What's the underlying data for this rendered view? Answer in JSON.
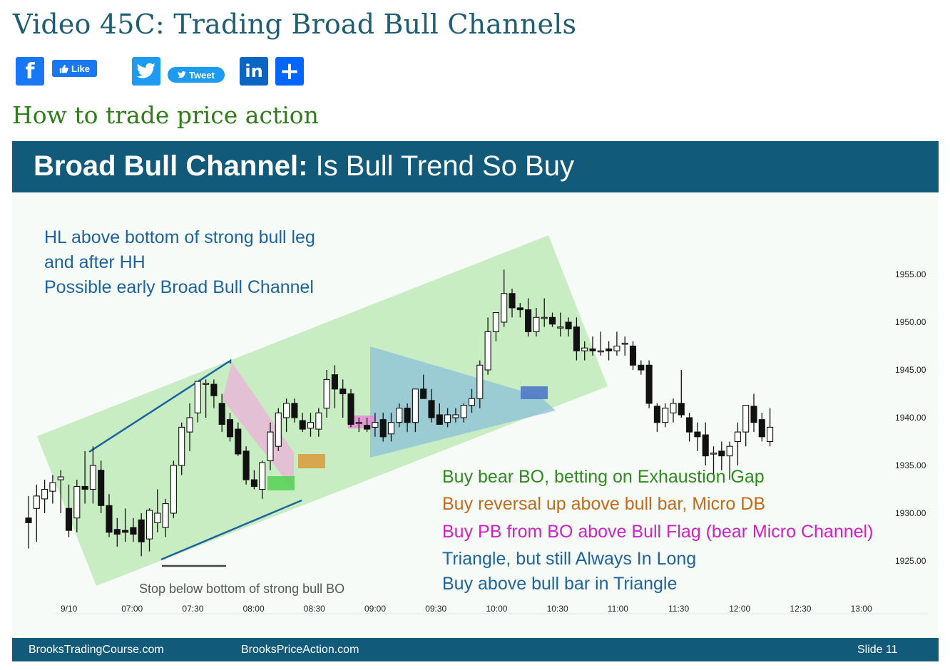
{
  "page": {
    "title": "Video 45C: Trading Broad Bull Channels",
    "subtitle": "How to trade price action"
  },
  "share": {
    "facebook_icon": "f",
    "like_label": "Like",
    "twitter_icon": "twitter-bird",
    "tweet_label": "Tweet",
    "linkedin_icon": "in",
    "more_icon": "+"
  },
  "slide": {
    "header_bold": "Broad Bull Channel:",
    "header_rest": "Is Bull Trend So Buy",
    "footer_left": "BrooksTradingCourse.com",
    "footer_mid": "BrooksPriceAction.com",
    "footer_right": "Slide  11"
  },
  "annotations": {
    "top_left": [
      "HL above bottom of strong bull leg",
      "and after HH",
      "Possible early Broad Bull Channel"
    ],
    "stop_note": "Stop below bottom of strong bull BO",
    "legend": [
      {
        "text": "Buy bear BO, betting on Exhaustion Gap",
        "color": "#2e8a1e"
      },
      {
        "text": "Buy reversal up above bull bar, Micro DB",
        "color": "#c06a1a"
      },
      {
        "text": "Buy PB from BO above Bull Flag (bear Micro Channel)",
        "color": "#d21fc8"
      },
      {
        "text": "Triangle, but still Always In Long",
        "color": "#1d63a0"
      },
      {
        "text": "Buy above bull bar in Triangle",
        "color": "#1d63a0"
      }
    ]
  },
  "colors": {
    "header_bg": "#125a7a",
    "channel_fill": "#b9e8b0",
    "trendline": "#1d63a0",
    "pink_zone": "#e7b7d6",
    "triangle_fill": "#8bbfd8"
  },
  "chart_data": {
    "type": "candlestick",
    "x_ticks": [
      "9/10",
      "07:00",
      "07:30",
      "08:00",
      "08:30",
      "09:00",
      "09:30",
      "10:00",
      "10:30",
      "11:00",
      "11:30",
      "12:00",
      "12:30",
      "13:00"
    ],
    "y_ticks": [
      1955,
      1950,
      1945,
      1940,
      1935,
      1930,
      1925
    ],
    "y_tick_labels": [
      "1955.00",
      "1950.00",
      "1945.00",
      "1940.00",
      "1935.00",
      "1930.00",
      "1925.00"
    ],
    "ylim": [
      1921.5,
      1958.5
    ],
    "bars": [
      [
        1929.5,
        1931.8,
        1926.3,
        1929.0
      ],
      [
        1930.5,
        1933.0,
        1927.0,
        1931.8
      ],
      [
        1931.5,
        1933.5,
        1930.0,
        1932.5
      ],
      [
        1932.3,
        1934.0,
        1931.0,
        1933.2
      ],
      [
        1933.5,
        1934.5,
        1930.0,
        1933.8
      ],
      [
        1930.5,
        1933.0,
        1927.5,
        1928.2
      ],
      [
        1929.5,
        1933.5,
        1928.0,
        1932.8
      ],
      [
        1932.8,
        1936.5,
        1931.0,
        1932.5
      ],
      [
        1932.5,
        1937.0,
        1931.0,
        1935.0
      ],
      [
        1934.5,
        1935.5,
        1930.0,
        1930.8
      ],
      [
        1930.8,
        1932.0,
        1927.5,
        1928.0
      ],
      [
        1928.3,
        1929.5,
        1926.5,
        1927.8
      ],
      [
        1928.2,
        1930.5,
        1927.0,
        1928.0
      ],
      [
        1928.5,
        1929.5,
        1927.0,
        1927.8
      ],
      [
        1929.3,
        1930.0,
        1925.5,
        1927.0
      ],
      [
        1927.3,
        1930.5,
        1926.0,
        1930.3
      ],
      [
        1929.0,
        1932.5,
        1928.0,
        1930.0
      ],
      [
        1928.5,
        1931.5,
        1927.5,
        1931.0
      ],
      [
        1930.0,
        1935.5,
        1929.5,
        1935.0
      ],
      [
        1935.0,
        1939.5,
        1934.0,
        1939.0
      ],
      [
        1938.5,
        1941.5,
        1936.5,
        1940.0
      ],
      [
        1940.5,
        1943.0,
        1939.5,
        1943.8
      ],
      [
        1943.5,
        1944.0,
        1940.0,
        1943.6
      ],
      [
        1943.5,
        1944.0,
        1941.0,
        1942.3
      ],
      [
        1941.5,
        1942.5,
        1938.5,
        1939.3
      ],
      [
        1939.8,
        1940.5,
        1937.5,
        1938.0
      ],
      [
        1938.8,
        1939.5,
        1936.0,
        1936.2
      ],
      [
        1936.5,
        1937.0,
        1933.0,
        1933.5
      ],
      [
        1933.5,
        1934.5,
        1932.5,
        1932.8
      ],
      [
        1932.5,
        1935.5,
        1931.5,
        1935.3
      ],
      [
        1935.5,
        1939.5,
        1934.5,
        1938.5
      ],
      [
        1937.0,
        1941.0,
        1936.5,
        1940.5
      ],
      [
        1940.0,
        1942.0,
        1938.5,
        1941.5
      ],
      [
        1941.5,
        1942.0,
        1939.5,
        1940.0
      ],
      [
        1939.7,
        1940.5,
        1938.5,
        1938.8
      ],
      [
        1938.9,
        1940.5,
        1938.0,
        1939.5
      ],
      [
        1938.8,
        1941.0,
        1938.0,
        1940.5
      ],
      [
        1941.0,
        1945.0,
        1940.0,
        1944.0
      ],
      [
        1944.5,
        1945.5,
        1941.0,
        1943.0
      ],
      [
        1943.0,
        1944.0,
        1940.0,
        1942.5
      ],
      [
        1942.5,
        1943.0,
        1939.0,
        1939.3
      ],
      [
        1939.5,
        1940.0,
        1938.5,
        1939.5
      ],
      [
        1939.2,
        1940.0,
        1938.5,
        1938.8
      ],
      [
        1939.0,
        1940.5,
        1938.0,
        1939.5
      ],
      [
        1939.8,
        1940.5,
        1937.5,
        1938.0
      ],
      [
        1938.3,
        1940.5,
        1937.5,
        1939.5
      ],
      [
        1939.5,
        1941.5,
        1939.0,
        1941.0
      ],
      [
        1941.0,
        1941.5,
        1938.5,
        1939.5
      ],
      [
        1939.5,
        1942.5,
        1938.5,
        1943.0
      ],
      [
        1943.0,
        1944.5,
        1942.0,
        1942.0
      ],
      [
        1941.8,
        1943.0,
        1939.5,
        1940.0
      ],
      [
        1940.3,
        1941.5,
        1939.5,
        1939.3
      ],
      [
        1939.5,
        1941.0,
        1939.0,
        1940.3
      ],
      [
        1940.0,
        1941.0,
        1939.5,
        1940.3
      ],
      [
        1940.0,
        1941.5,
        1939.5,
        1941.3
      ],
      [
        1941.3,
        1943.0,
        1940.5,
        1942.0
      ],
      [
        1942.0,
        1946.0,
        1941.0,
        1945.5
      ],
      [
        1945.0,
        1950.5,
        1944.5,
        1949.0
      ],
      [
        1949.0,
        1951.0,
        1948.0,
        1951.0
      ],
      [
        1950.0,
        1955.5,
        1949.5,
        1953.0
      ],
      [
        1953.0,
        1953.5,
        1950.5,
        1951.5
      ],
      [
        1951.5,
        1952.0,
        1950.5,
        1951.3
      ],
      [
        1951.3,
        1952.5,
        1948.5,
        1949.0
      ],
      [
        1949.0,
        1951.5,
        1948.5,
        1950.5
      ],
      [
        1950.5,
        1952.5,
        1949.5,
        1950.5
      ],
      [
        1950.5,
        1951.0,
        1949.5,
        1949.8
      ],
      [
        1949.5,
        1951.0,
        1948.5,
        1949.5
      ],
      [
        1950.0,
        1950.5,
        1948.5,
        1949.3
      ],
      [
        1949.5,
        1950.5,
        1946.0,
        1947.0
      ],
      [
        1947.0,
        1948.0,
        1946.0,
        1947.3
      ],
      [
        1947.2,
        1948.5,
        1946.5,
        1947.0
      ],
      [
        1947.0,
        1949.0,
        1946.5,
        1947.0
      ],
      [
        1947.2,
        1948.0,
        1946.0,
        1947.0
      ],
      [
        1947.0,
        1949.0,
        1946.5,
        1947.5
      ],
      [
        1947.7,
        1948.5,
        1946.5,
        1947.8
      ],
      [
        1947.5,
        1948.0,
        1945.0,
        1945.5
      ],
      [
        1945.5,
        1946.0,
        1944.5,
        1945.0
      ],
      [
        1945.5,
        1946.0,
        1941.0,
        1941.5
      ],
      [
        1941.2,
        1941.5,
        1938.5,
        1939.5
      ],
      [
        1939.5,
        1941.5,
        1939.0,
        1941.0
      ],
      [
        1940.5,
        1942.0,
        1939.5,
        1941.5
      ],
      [
        1941.5,
        1945.0,
        1940.0,
        1940.3
      ],
      [
        1940.0,
        1940.5,
        1937.5,
        1938.5
      ],
      [
        1938.5,
        1939.5,
        1936.5,
        1938.0
      ],
      [
        1938.2,
        1939.5,
        1935.0,
        1936.0
      ],
      [
        1936.3,
        1937.0,
        1934.0,
        1936.3
      ],
      [
        1936.5,
        1937.5,
        1934.5,
        1936.0
      ],
      [
        1936.0,
        1937.5,
        1933.5,
        1937.0
      ],
      [
        1937.5,
        1939.5,
        1935.0,
        1938.5
      ],
      [
        1938.5,
        1941.0,
        1937.0,
        1941.3
      ],
      [
        1941.2,
        1942.5,
        1938.5,
        1939.5
      ],
      [
        1939.8,
        1940.5,
        1937.5,
        1938.0
      ],
      [
        1937.5,
        1941.0,
        1937.0,
        1939.0
      ]
    ]
  }
}
